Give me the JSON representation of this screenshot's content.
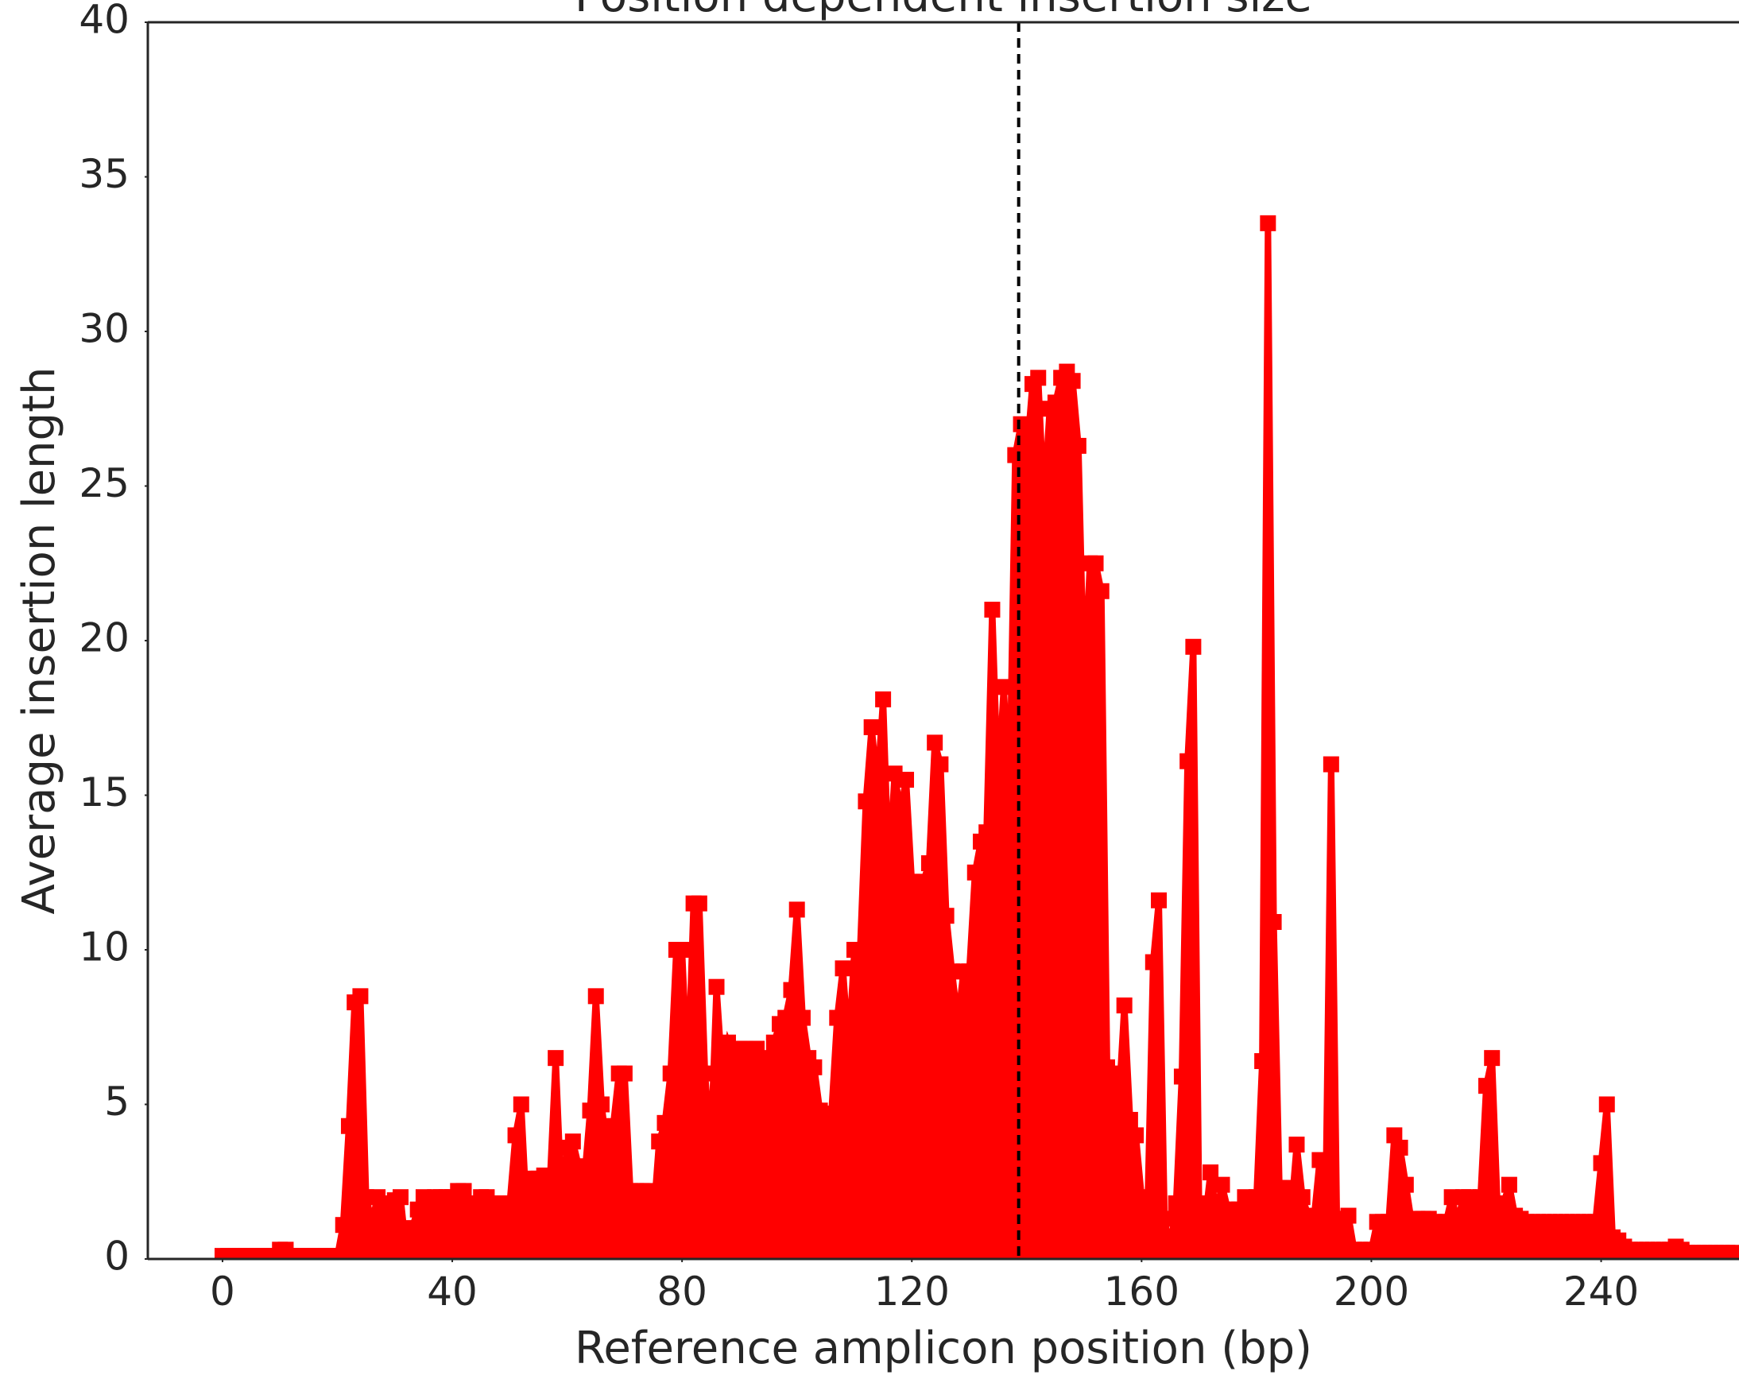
{
  "chart_data": {
    "type": "line",
    "title": "Position dependent insertion size",
    "xlabel": "Reference amplicon position (bp)",
    "ylabel": "Average insertion length",
    "x": [
      0,
      1,
      2,
      3,
      4,
      5,
      6,
      7,
      8,
      9,
      10,
      11,
      12,
      13,
      14,
      15,
      16,
      17,
      18,
      19,
      20,
      21,
      22,
      23,
      24,
      25,
      26,
      27,
      28,
      29,
      30,
      31,
      32,
      33,
      34,
      35,
      36,
      37,
      38,
      39,
      40,
      41,
      42,
      43,
      44,
      45,
      46,
      47,
      48,
      49,
      50,
      51,
      52,
      53,
      54,
      55,
      56,
      57,
      58,
      59,
      60,
      61,
      62,
      63,
      64,
      65,
      66,
      67,
      68,
      69,
      70,
      71,
      72,
      73,
      74,
      75,
      76,
      77,
      78,
      79,
      80,
      81,
      82,
      83,
      84,
      85,
      86,
      87,
      88,
      89,
      90,
      91,
      92,
      93,
      94,
      95,
      96,
      97,
      98,
      99,
      100,
      101,
      102,
      103,
      104,
      105,
      106,
      107,
      108,
      109,
      110,
      111,
      112,
      113,
      114,
      115,
      116,
      117,
      118,
      119,
      120,
      121,
      122,
      123,
      124,
      125,
      126,
      127,
      128,
      129,
      130,
      131,
      132,
      133,
      134,
      135,
      136,
      137,
      138,
      139,
      140,
      141,
      142,
      143,
      144,
      145,
      146,
      147,
      148,
      149,
      150,
      151,
      152,
      153,
      154,
      155,
      156,
      157,
      158,
      159,
      160,
      161,
      162,
      163,
      164,
      165,
      166,
      167,
      168,
      169,
      170,
      171,
      172,
      173,
      174,
      175,
      176,
      177,
      178,
      179,
      180,
      181,
      182,
      183,
      184,
      185,
      186,
      187,
      188,
      189,
      190,
      191,
      192,
      193,
      194,
      195,
      196,
      197,
      198,
      199,
      200,
      201,
      202,
      203,
      204,
      205,
      206,
      207,
      208,
      209,
      210,
      211,
      212,
      213,
      214,
      215,
      216,
      217,
      218,
      219,
      220,
      221,
      222,
      223,
      224,
      225,
      226,
      227,
      228,
      229,
      230,
      231,
      232,
      233,
      234,
      235,
      236,
      237,
      238,
      239,
      240,
      241,
      242,
      243,
      244,
      245,
      246,
      247,
      248,
      249,
      250,
      251,
      252,
      253,
      254,
      255,
      256,
      257,
      258,
      259,
      260,
      261,
      262,
      263
    ],
    "series": [
      {
        "color": "#ff0000",
        "values": [
          0.1,
          0.1,
          0.1,
          0.1,
          0.1,
          0.1,
          0.1,
          0.1,
          0.1,
          0.1,
          0.3,
          0.3,
          0.1,
          0.1,
          0.1,
          0.1,
          0.1,
          0.1,
          0.1,
          0.1,
          0.1,
          1.1,
          4.3,
          8.3,
          8.5,
          2.0,
          1.2,
          2.0,
          1.8,
          1.5,
          1.9,
          2.0,
          0.2,
          1.0,
          1.6,
          2.0,
          1.8,
          2.0,
          2.0,
          2.0,
          2.0,
          2.2,
          2.2,
          1.6,
          1.8,
          2.0,
          2.0,
          1.8,
          1.8,
          1.8,
          1.8,
          4.0,
          5.0,
          1.3,
          2.6,
          2.6,
          2.7,
          2.5,
          6.5,
          2.0,
          3.6,
          3.8,
          3.0,
          2.6,
          4.8,
          8.5,
          5.0,
          3.4,
          4.3,
          6.0,
          6.0,
          2.2,
          2.2,
          2.2,
          2.2,
          1.3,
          3.8,
          4.4,
          6.0,
          10.0,
          10.0,
          5.8,
          11.5,
          11.5,
          6.0,
          3.6,
          8.8,
          6.0,
          7.0,
          6.5,
          6.8,
          6.8,
          6.5,
          6.8,
          6.5,
          6.0,
          7.0,
          7.6,
          7.8,
          8.7,
          11.3,
          7.8,
          6.5,
          6.2,
          4.8,
          4.7,
          4.7,
          7.8,
          9.4,
          6.8,
          10.0,
          10.0,
          14.8,
          17.2,
          15.3,
          18.1,
          12.5,
          15.7,
          14.5,
          15.5,
          12.2,
          12.2,
          12.2,
          12.8,
          16.7,
          16.0,
          11.1,
          9.3,
          7.7,
          9.3,
          9.3,
          12.5,
          13.5,
          13.8,
          21.0,
          15.2,
          18.5,
          15.0,
          26.0,
          27.0,
          26.0,
          28.3,
          28.5,
          24.5,
          27.5,
          27.7,
          28.5,
          28.7,
          28.4,
          26.3,
          18.5,
          22.5,
          22.5,
          21.6,
          6.2,
          6.0,
          5.0,
          8.2,
          4.5,
          4.0,
          2.0,
          1.3,
          9.6,
          11.6,
          1.3,
          0.3,
          1.8,
          5.9,
          16.1,
          19.8,
          1.8,
          1.2,
          2.8,
          1.5,
          2.4,
          1.6,
          1.6,
          1.6,
          2.0,
          1.6,
          2.0,
          6.4,
          33.5,
          10.9,
          2.3,
          2.3,
          1.4,
          3.7,
          2.0,
          1.4,
          1.3,
          3.2,
          1.3,
          16.0,
          1.3,
          1.3,
          1.4,
          0.3,
          0.3,
          0.3,
          0.3,
          1.2,
          1.2,
          1.2,
          4.0,
          3.6,
          2.4,
          1.2,
          1.3,
          1.3,
          1.3,
          1.2,
          1.2,
          1.2,
          2.0,
          1.2,
          2.0,
          2.0,
          1.4,
          2.0,
          5.6,
          6.5,
          1.5,
          1.8,
          2.4,
          1.4,
          1.3,
          1.2,
          1.2,
          1.2,
          1.2,
          1.2,
          1.2,
          1.2,
          1.2,
          1.2,
          1.2,
          1.2,
          1.2,
          1.2,
          3.1,
          5.0,
          0.7,
          0.6,
          0.4,
          0.3,
          0.3,
          0.3,
          0.3,
          0.3,
          0.3,
          0.3,
          0.3,
          0.4,
          0.3,
          0.2,
          0.2,
          0.2,
          0.2,
          0.2,
          0.2,
          0.2,
          0.2,
          0.2
        ]
      }
    ],
    "fill_to_zero": true,
    "vline_x": 138.6,
    "xlim": [
      -13,
      264
    ],
    "xticks": [
      0,
      40,
      80,
      120,
      160,
      200,
      240
    ],
    "ylim": [
      0,
      40
    ],
    "yticks": [
      0,
      5,
      10,
      15,
      20,
      25,
      30,
      35,
      40
    ],
    "grid": false
  }
}
